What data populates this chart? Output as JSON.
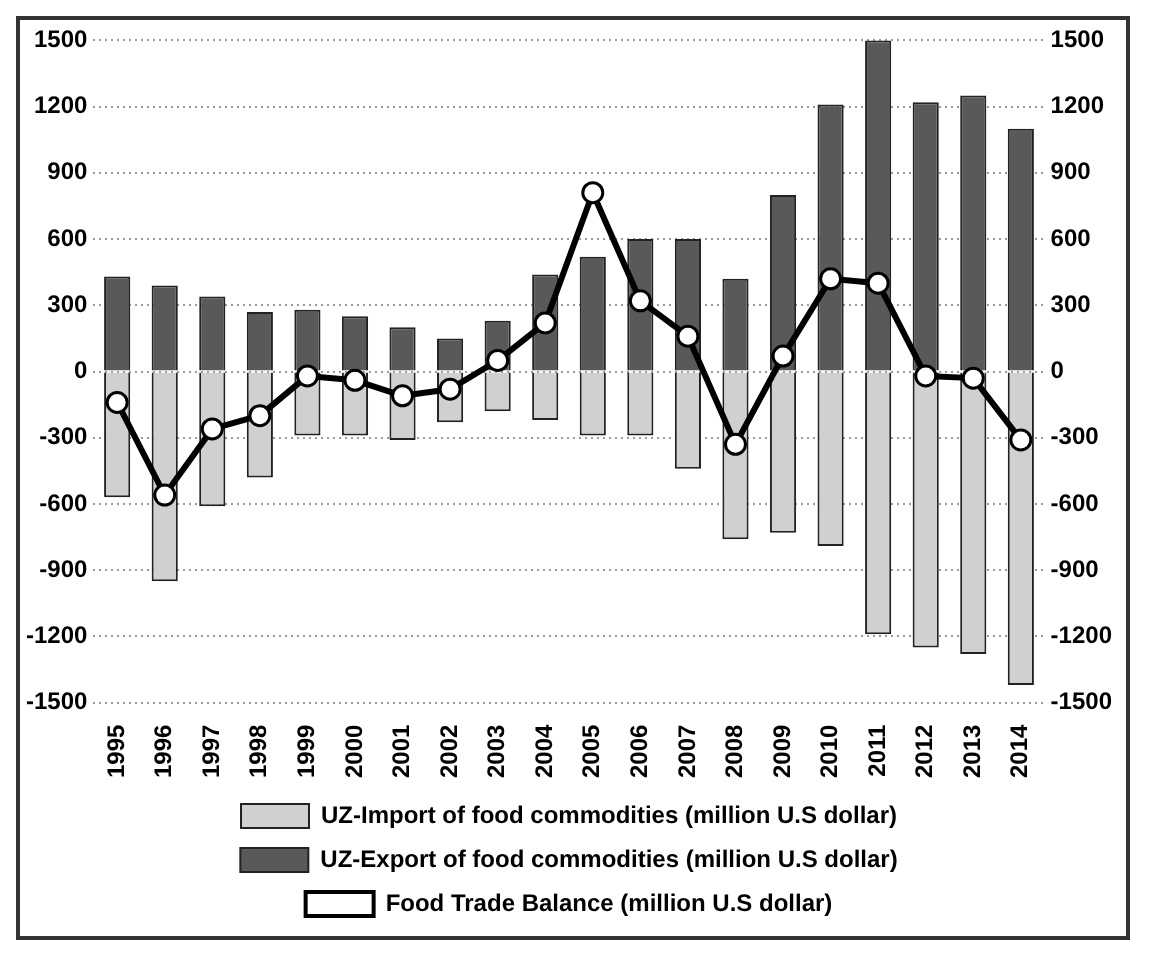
{
  "chart_data": {
    "type": "bar",
    "stacked": true,
    "categories": [
      "1995",
      "1996",
      "1997",
      "1998",
      "1999",
      "2000",
      "2001",
      "2002",
      "2003",
      "2004",
      "2005",
      "2006",
      "2007",
      "2008",
      "2009",
      "2010",
      "2011",
      "2012",
      "2013",
      "2014"
    ],
    "series": [
      {
        "name": "UZ-Import of food commodities (million U.S dollar)",
        "color": "#d0d0d0",
        "values": [
          -570,
          -950,
          -610,
          -480,
          -290,
          -290,
          -310,
          -230,
          -180,
          -220,
          -290,
          -290,
          -440,
          -760,
          -730,
          -790,
          -1190,
          -1250,
          -1280,
          -1420
        ]
      },
      {
        "name": "UZ-Export of food commodities (million U.S dollar)",
        "color": "#595959",
        "values": [
          430,
          390,
          340,
          270,
          280,
          250,
          200,
          150,
          230,
          440,
          520,
          600,
          600,
          420,
          800,
          1210,
          1500,
          1220,
          1250,
          1100
        ]
      },
      {
        "name": "Food Trade Balance (million U.S dollar)",
        "type": "line",
        "color": "#000000",
        "marker": "circle",
        "values": [
          -140,
          -560,
          -260,
          -200,
          -20,
          -40,
          -110,
          -80,
          50,
          220,
          810,
          320,
          160,
          -330,
          70,
          420,
          400,
          -20,
          -30,
          -310
        ]
      }
    ],
    "ylim": [
      -1500,
      1500
    ],
    "yticks": [
      -1500,
      -1200,
      -900,
      -600,
      -300,
      0,
      300,
      600,
      900,
      1200,
      1500
    ],
    "y2lim": [
      -1500,
      1500
    ],
    "y2ticks": [
      -1500,
      -1200,
      -900,
      -600,
      -300,
      0,
      300,
      600,
      900,
      1200,
      1500
    ],
    "grid": "y",
    "legend": "bottom"
  }
}
